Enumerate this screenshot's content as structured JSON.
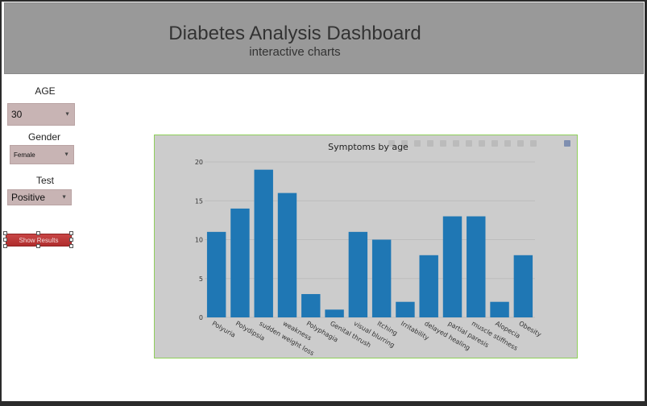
{
  "header": {
    "title": "Diabetes Analysis Dashboard",
    "subtitle": "interactive charts"
  },
  "filters": {
    "age_label": "AGE",
    "age_value": "30",
    "gender_label": "Gender",
    "gender_value": "Female",
    "test_label": "Test",
    "test_value": "Positive"
  },
  "button": {
    "show_results_label": "Show Results"
  },
  "colors": {
    "bar": "#1f77b4",
    "header_bg": "#999999",
    "select_bg": "#c8b4b4",
    "button": "#b83a3a"
  },
  "toolbar_icons": [
    "camera-icon",
    "zoom-icon",
    "pan-icon",
    "box-select-icon",
    "lasso-icon",
    "zoom-in-icon",
    "zoom-out-icon",
    "autoscale-icon",
    "reset-axes-icon",
    "spike-lines-icon",
    "hover-closest-icon",
    "hover-compare-icon",
    "plotly-logo-icon"
  ],
  "chart_data": {
    "type": "bar",
    "title": "Symptoms by age",
    "xlabel": "",
    "ylabel": "",
    "ylim": [
      0,
      20
    ],
    "yticks": [
      0,
      5,
      10,
      15,
      20
    ],
    "grid": true,
    "categories": [
      "Polyuria",
      "Polydipsia",
      "sudden weight loss",
      "weakness",
      "Polyphagia",
      "Genital thrush",
      "visual blurring",
      "Itching",
      "Irritability",
      "delayed healing",
      "partial paresis",
      "muscle stiffness",
      "Alopecia",
      "Obesity"
    ],
    "values": [
      11,
      14,
      19,
      16,
      3,
      1,
      11,
      10,
      2,
      8,
      13,
      13,
      2,
      8
    ]
  }
}
